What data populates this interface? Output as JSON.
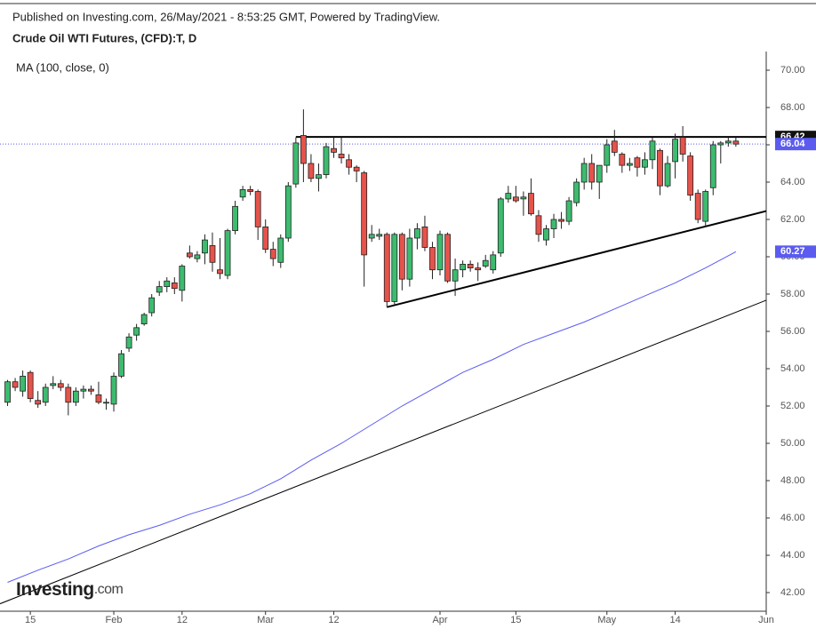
{
  "chart_data": {
    "type": "candlestick",
    "header": "Published on Investing.com, 26/May/2021 - 8:53:25 GMT, Powered by TradingView.",
    "title": "Crude Oil WTI Futures, (CFD):T, D",
    "indicator_label": "MA (100, close, 0)",
    "logo": {
      "main": "Investing",
      "suffix": ".com"
    },
    "up_color": "#3dbb6f",
    "down_color": "#e5534b",
    "ma_color": "#5b5bf0",
    "xlim": [
      -1,
      100
    ],
    "xticks": [
      {
        "value": 3,
        "label": "15"
      },
      {
        "value": 14,
        "label": "Feb"
      },
      {
        "value": 23,
        "label": "12"
      },
      {
        "value": 34,
        "label": "Mar"
      },
      {
        "value": 43,
        "label": "12"
      },
      {
        "value": 57,
        "label": "Apr"
      },
      {
        "value": 67,
        "label": "15"
      },
      {
        "value": 79,
        "label": "May"
      },
      {
        "value": 88,
        "label": "14"
      },
      {
        "value": 100,
        "label": "Jun"
      }
    ],
    "ylim": [
      41,
      71
    ],
    "yticks": [
      {
        "value": 42,
        "label": "42.00"
      },
      {
        "value": 44,
        "label": "44.00"
      },
      {
        "value": 46,
        "label": "46.00"
      },
      {
        "value": 48,
        "label": "48.00"
      },
      {
        "value": 50,
        "label": "50.00"
      },
      {
        "value": 52,
        "label": "52.00"
      },
      {
        "value": 54,
        "label": "54.00"
      },
      {
        "value": 56,
        "label": "56.00"
      },
      {
        "value": 58,
        "label": "58.00"
      },
      {
        "value": 60,
        "label": "60.00"
      },
      {
        "value": 62,
        "label": "62.00"
      },
      {
        "value": 64,
        "label": "64.00"
      },
      {
        "value": 66,
        "label": "66.00"
      },
      {
        "value": 68,
        "label": "68.00"
      },
      {
        "value": 70,
        "label": "70.00"
      }
    ],
    "last_price": 66.04,
    "ohlc": [
      [
        52.2,
        53.4,
        52.0,
        53.3
      ],
      [
        53.3,
        53.5,
        52.8,
        53.0
      ],
      [
        52.8,
        53.9,
        52.5,
        53.6
      ],
      [
        53.8,
        53.9,
        52.2,
        52.4
      ],
      [
        52.3,
        52.8,
        51.9,
        52.1
      ],
      [
        52.2,
        53.2,
        52.0,
        53.0
      ],
      [
        53.1,
        53.6,
        52.9,
        53.2
      ],
      [
        53.2,
        53.4,
        52.8,
        53.0
      ],
      [
        53.0,
        53.2,
        51.5,
        52.2
      ],
      [
        52.2,
        53.0,
        52.0,
        52.8
      ],
      [
        52.8,
        53.1,
        52.4,
        52.9
      ],
      [
        52.9,
        53.1,
        52.6,
        52.8
      ],
      [
        52.6,
        53.3,
        52.1,
        52.2
      ],
      [
        52.2,
        52.4,
        51.8,
        52.2
      ],
      [
        52.1,
        53.8,
        51.7,
        53.6
      ],
      [
        53.6,
        55.0,
        53.5,
        54.8
      ],
      [
        55.1,
        55.9,
        54.9,
        55.7
      ],
      [
        55.8,
        56.4,
        55.5,
        56.2
      ],
      [
        56.4,
        57.0,
        56.3,
        56.9
      ],
      [
        57.0,
        58.0,
        56.8,
        57.8
      ],
      [
        58.1,
        58.7,
        57.9,
        58.4
      ],
      [
        58.4,
        58.9,
        58.1,
        58.7
      ],
      [
        58.6,
        58.9,
        58.0,
        58.3
      ],
      [
        58.2,
        59.6,
        57.6,
        59.5
      ],
      [
        60.2,
        60.6,
        59.9,
        60.0
      ],
      [
        59.9,
        60.3,
        59.7,
        60.1
      ],
      [
        60.2,
        61.2,
        59.6,
        60.9
      ],
      [
        60.6,
        61.3,
        59.2,
        59.7
      ],
      [
        59.3,
        61.0,
        58.8,
        59.1
      ],
      [
        59.0,
        61.5,
        58.8,
        61.4
      ],
      [
        61.4,
        63.0,
        61.2,
        62.7
      ],
      [
        63.2,
        63.8,
        63.0,
        63.6
      ],
      [
        63.6,
        63.8,
        63.3,
        63.5
      ],
      [
        63.5,
        63.6,
        60.9,
        61.6
      ],
      [
        61.6,
        62.0,
        60.2,
        60.4
      ],
      [
        60.4,
        60.8,
        59.5,
        59.9
      ],
      [
        59.7,
        61.2,
        59.4,
        61.0
      ],
      [
        61.0,
        64.0,
        60.8,
        63.8
      ],
      [
        63.9,
        66.4,
        63.7,
        66.1
      ],
      [
        66.5,
        67.9,
        64.0,
        65.0
      ],
      [
        65.0,
        65.5,
        64.0,
        64.2
      ],
      [
        64.2,
        65.0,
        63.5,
        64.4
      ],
      [
        64.4,
        66.1,
        64.2,
        65.9
      ],
      [
        65.8,
        66.4,
        65.3,
        65.6
      ],
      [
        65.5,
        66.4,
        65.0,
        65.3
      ],
      [
        65.2,
        65.5,
        64.4,
        64.8
      ],
      [
        64.8,
        64.9,
        64.0,
        64.6
      ],
      [
        64.5,
        64.6,
        58.4,
        60.1
      ],
      [
        61.0,
        61.7,
        60.8,
        61.2
      ],
      [
        61.1,
        61.5,
        60.9,
        61.2
      ],
      [
        61.2,
        61.3,
        57.3,
        57.6
      ],
      [
        57.6,
        61.3,
        57.4,
        61.2
      ],
      [
        61.2,
        61.3,
        58.2,
        58.8
      ],
      [
        58.8,
        61.5,
        58.4,
        61.0
      ],
      [
        61.0,
        61.8,
        60.4,
        61.5
      ],
      [
        61.6,
        62.2,
        60.3,
        60.5
      ],
      [
        60.5,
        60.8,
        58.8,
        59.3
      ],
      [
        59.3,
        61.4,
        59.0,
        61.2
      ],
      [
        61.2,
        61.3,
        58.6,
        58.7
      ],
      [
        58.7,
        59.9,
        57.9,
        59.3
      ],
      [
        59.3,
        59.8,
        58.9,
        59.6
      ],
      [
        59.6,
        59.8,
        59.2,
        59.4
      ],
      [
        59.4,
        59.7,
        58.7,
        59.3
      ],
      [
        59.5,
        60.1,
        59.4,
        59.8
      ],
      [
        59.3,
        60.3,
        59.1,
        60.1
      ],
      [
        60.2,
        63.2,
        60.0,
        63.1
      ],
      [
        63.1,
        63.8,
        62.9,
        63.4
      ],
      [
        63.2,
        63.8,
        62.9,
        63.0
      ],
      [
        63.1,
        63.5,
        62.2,
        63.2
      ],
      [
        63.4,
        64.2,
        62.2,
        62.3
      ],
      [
        62.2,
        62.5,
        60.8,
        61.2
      ],
      [
        60.9,
        61.7,
        60.6,
        61.5
      ],
      [
        61.5,
        62.3,
        61.0,
        62.0
      ],
      [
        62.0,
        62.4,
        61.5,
        61.9
      ],
      [
        61.9,
        63.2,
        61.7,
        63.0
      ],
      [
        62.9,
        64.2,
        62.7,
        64.0
      ],
      [
        64.0,
        65.3,
        63.6,
        65.0
      ],
      [
        65.0,
        65.5,
        63.6,
        64.0
      ],
      [
        64.0,
        64.9,
        63.1,
        64.9
      ],
      [
        64.9,
        66.3,
        64.5,
        66.0
      ],
      [
        66.2,
        66.8,
        65.4,
        65.6
      ],
      [
        65.5,
        65.6,
        64.5,
        64.9
      ],
      [
        64.9,
        65.3,
        64.6,
        65.0
      ],
      [
        65.3,
        65.4,
        64.3,
        64.8
      ],
      [
        64.8,
        65.6,
        64.4,
        65.2
      ],
      [
        65.2,
        66.4,
        64.7,
        66.2
      ],
      [
        65.7,
        65.8,
        63.3,
        63.8
      ],
      [
        63.8,
        65.4,
        63.7,
        65.0
      ],
      [
        65.1,
        66.6,
        64.2,
        66.3
      ],
      [
        66.4,
        67.0,
        65.1,
        65.5
      ],
      [
        65.4,
        65.6,
        63.0,
        63.3
      ],
      [
        63.4,
        63.6,
        61.8,
        62.0
      ],
      [
        61.9,
        63.6,
        61.6,
        63.5
      ],
      [
        63.7,
        66.2,
        63.3,
        66.0
      ],
      [
        66.0,
        66.2,
        65.0,
        66.1
      ],
      [
        66.1,
        66.4,
        65.9,
        66.2
      ],
      [
        66.2,
        66.4,
        65.9,
        66.04
      ]
    ],
    "ma": {
      "x": [
        0,
        4,
        8,
        12,
        16,
        20,
        24,
        28,
        32,
        36,
        40,
        44,
        48,
        52,
        56,
        60,
        64,
        68,
        72,
        76,
        80,
        84,
        88,
        92,
        96
      ],
      "values": [
        42.55,
        43.2,
        43.8,
        44.5,
        45.1,
        45.6,
        46.2,
        46.7,
        47.3,
        48.1,
        49.1,
        50.0,
        51.0,
        52.0,
        52.9,
        53.8,
        54.5,
        55.3,
        55.9,
        56.5,
        57.2,
        57.9,
        58.6,
        59.4,
        60.27
      ]
    },
    "lines": [
      {
        "x": [
          38,
          100
        ],
        "y": [
          66.42,
          66.42
        ],
        "width": 2
      },
      {
        "x": [
          50,
          100
        ],
        "y": [
          57.3,
          62.45
        ],
        "width": 2
      },
      {
        "x": [
          -1,
          100
        ],
        "y": [
          41.4,
          57.67
        ],
        "width": 1
      }
    ]
  }
}
